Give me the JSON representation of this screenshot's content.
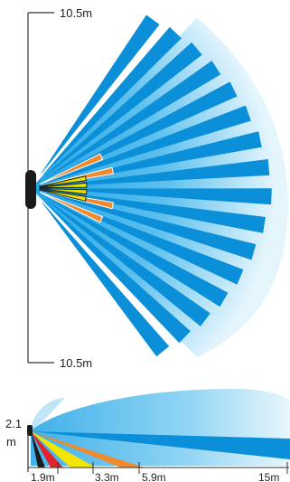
{
  "top_view": {
    "range_top_label": "10.5m",
    "range_bottom_label": "10.5m",
    "beam_color": "#0a8fd8",
    "field_light_color": "#d6f0fb",
    "field_mid_color": "#5cc0ee",
    "mid_zone_color": "#f08a2c",
    "near_zone_color": "#e8e000",
    "sensor_color": "#1a1a1a"
  },
  "side_view": {
    "height_label_top": "2.1",
    "height_label_bottom": "m",
    "distance_labels": [
      "1.9m",
      "3.3m",
      "5.9m",
      "15m"
    ],
    "zone_colors": [
      "#e0242a",
      "#f5e600",
      "#f08a2c",
      "#0a8fd8"
    ]
  }
}
